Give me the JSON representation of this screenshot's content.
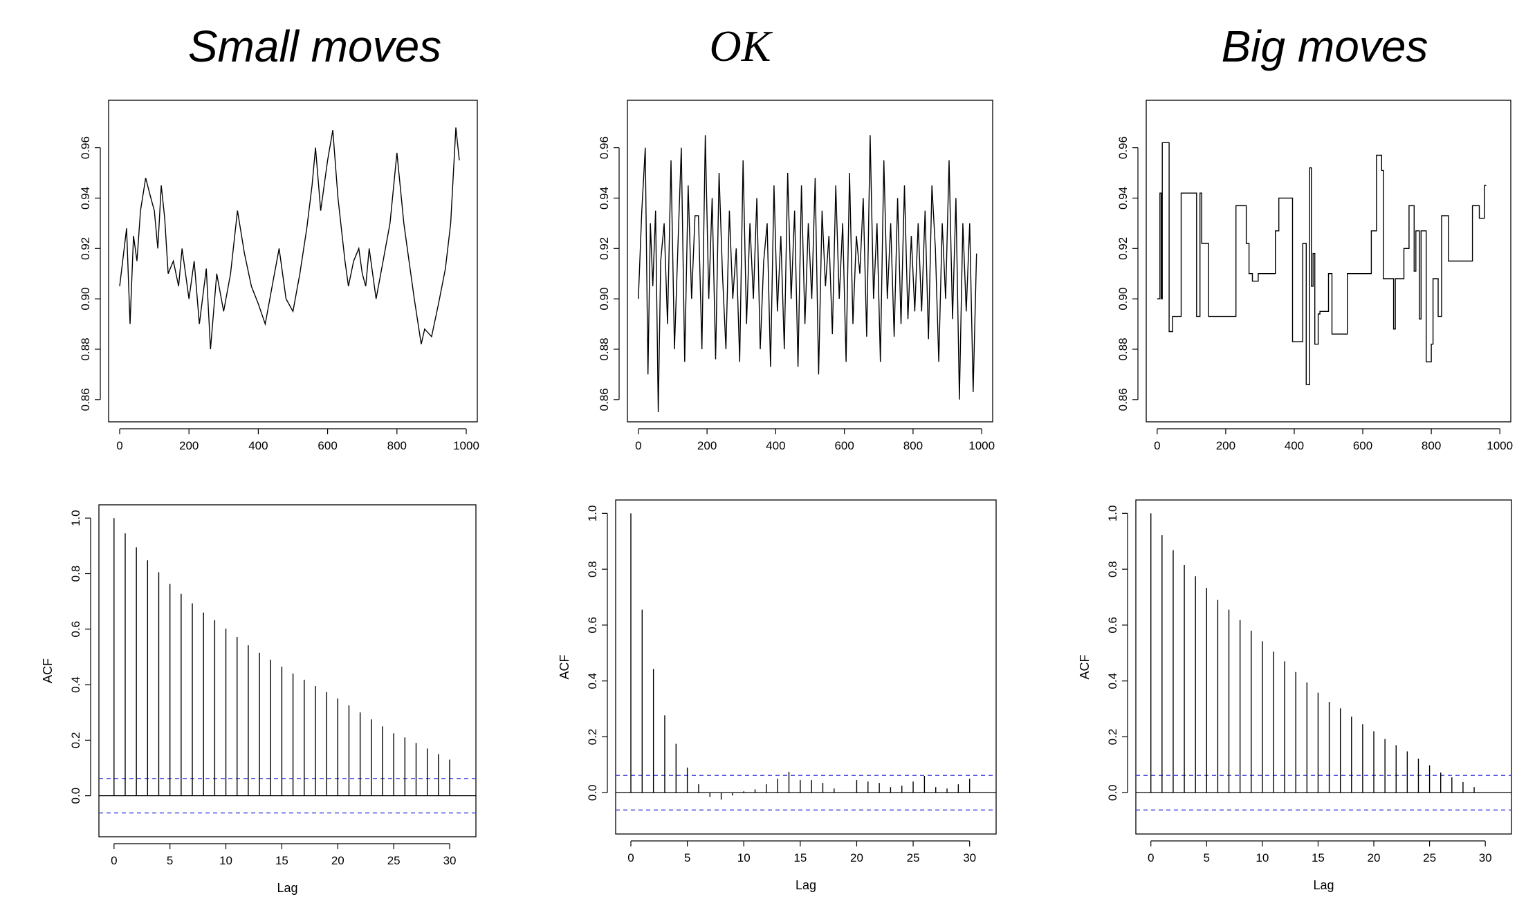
{
  "titles": [
    "Small moves",
    "OK",
    "Big moves"
  ],
  "chart_data": [
    {
      "type": "line",
      "panel": "trace",
      "title": "Small moves",
      "xlabel": "",
      "ylabel": "",
      "xlim": [
        0,
        1000
      ],
      "ylim": [
        0.855,
        0.975
      ],
      "xticks": [
        0,
        200,
        400,
        600,
        800,
        1000
      ],
      "yticks": [
        0.86,
        0.88,
        0.9,
        0.92,
        0.94,
        0.96
      ],
      "yticklabels": [
        "0.86",
        "0.88",
        "0.90",
        "0.92",
        "0.94",
        "0.96"
      ],
      "x": [
        0,
        20,
        30,
        40,
        50,
        60,
        75,
        90,
        100,
        110,
        120,
        130,
        140,
        155,
        170,
        180,
        200,
        215,
        230,
        250,
        262,
        280,
        300,
        320,
        340,
        360,
        380,
        400,
        420,
        440,
        460,
        480,
        500,
        520,
        540,
        555,
        565,
        580,
        600,
        615,
        630,
        650,
        660,
        675,
        690,
        700,
        710,
        720,
        730,
        740,
        760,
        780,
        800,
        820,
        835,
        850,
        870,
        880,
        900,
        920,
        940,
        955,
        970,
        980
      ],
      "y": [
        0.905,
        0.928,
        0.89,
        0.925,
        0.915,
        0.935,
        0.948,
        0.94,
        0.935,
        0.92,
        0.945,
        0.932,
        0.91,
        0.915,
        0.905,
        0.92,
        0.9,
        0.915,
        0.89,
        0.912,
        0.88,
        0.91,
        0.895,
        0.91,
        0.935,
        0.918,
        0.905,
        0.898,
        0.89,
        0.905,
        0.92,
        0.9,
        0.895,
        0.91,
        0.928,
        0.945,
        0.96,
        0.935,
        0.955,
        0.967,
        0.94,
        0.915,
        0.905,
        0.915,
        0.92,
        0.91,
        0.905,
        0.92,
        0.91,
        0.9,
        0.915,
        0.93,
        0.958,
        0.93,
        0.915,
        0.9,
        0.882,
        0.888,
        0.885,
        0.898,
        0.912,
        0.93,
        0.968,
        0.955
      ]
    },
    {
      "type": "line",
      "panel": "trace",
      "title": "OK",
      "xlabel": "",
      "ylabel": "",
      "xlim": [
        0,
        1000
      ],
      "ylim": [
        0.855,
        0.975
      ],
      "xticks": [
        0,
        200,
        400,
        600,
        800,
        1000
      ],
      "yticks": [
        0.86,
        0.88,
        0.9,
        0.92,
        0.94,
        0.96
      ],
      "yticklabels": [
        "0.86",
        "0.88",
        "0.90",
        "0.92",
        "0.94",
        "0.96"
      ],
      "x": [
        0,
        10,
        20,
        28,
        35,
        42,
        50,
        58,
        65,
        75,
        85,
        95,
        105,
        115,
        125,
        135,
        145,
        155,
        165,
        175,
        185,
        195,
        205,
        215,
        225,
        235,
        245,
        255,
        265,
        275,
        285,
        295,
        305,
        315,
        325,
        335,
        345,
        355,
        365,
        375,
        385,
        395,
        405,
        415,
        425,
        435,
        445,
        455,
        465,
        475,
        485,
        495,
        505,
        515,
        525,
        535,
        545,
        555,
        565,
        575,
        585,
        595,
        605,
        615,
        625,
        635,
        645,
        655,
        665,
        675,
        685,
        695,
        705,
        715,
        725,
        735,
        745,
        755,
        765,
        775,
        785,
        795,
        805,
        815,
        825,
        835,
        845,
        855,
        865,
        875,
        885,
        895,
        905,
        915,
        925,
        935,
        945,
        955,
        965,
        975,
        985
      ],
      "y": [
        0.9,
        0.935,
        0.96,
        0.87,
        0.93,
        0.905,
        0.935,
        0.855,
        0.915,
        0.93,
        0.89,
        0.955,
        0.88,
        0.92,
        0.96,
        0.875,
        0.945,
        0.9,
        0.933,
        0.933,
        0.88,
        0.965,
        0.9,
        0.94,
        0.876,
        0.95,
        0.91,
        0.88,
        0.935,
        0.9,
        0.92,
        0.875,
        0.955,
        0.89,
        0.93,
        0.9,
        0.94,
        0.88,
        0.915,
        0.93,
        0.873,
        0.945,
        0.895,
        0.925,
        0.88,
        0.95,
        0.9,
        0.935,
        0.873,
        0.945,
        0.89,
        0.93,
        0.9,
        0.948,
        0.87,
        0.935,
        0.905,
        0.925,
        0.886,
        0.945,
        0.9,
        0.93,
        0.875,
        0.95,
        0.89,
        0.925,
        0.91,
        0.94,
        0.885,
        0.965,
        0.9,
        0.93,
        0.875,
        0.955,
        0.9,
        0.93,
        0.885,
        0.94,
        0.89,
        0.945,
        0.892,
        0.925,
        0.895,
        0.93,
        0.895,
        0.935,
        0.884,
        0.945,
        0.92,
        0.875,
        0.93,
        0.9,
        0.955,
        0.892,
        0.94,
        0.86,
        0.93,
        0.895,
        0.93,
        0.863,
        0.918
      ]
    },
    {
      "type": "line",
      "panel": "trace",
      "title": "Big moves",
      "xlabel": "",
      "ylabel": "",
      "xlim": [
        0,
        1000
      ],
      "ylim": [
        0.855,
        0.975
      ],
      "xticks": [
        0,
        200,
        400,
        600,
        800,
        1000
      ],
      "yticks": [
        0.86,
        0.88,
        0.9,
        0.92,
        0.94,
        0.96
      ],
      "yticklabels": [
        "0.86",
        "0.88",
        "0.90",
        "0.92",
        "0.94",
        "0.96"
      ],
      "steps": [
        [
          0,
          0.9
        ],
        [
          8,
          0.942
        ],
        [
          12,
          0.9
        ],
        [
          15,
          0.962
        ],
        [
          35,
          0.887
        ],
        [
          45,
          0.893
        ],
        [
          70,
          0.942
        ],
        [
          115,
          0.893
        ],
        [
          125,
          0.942
        ],
        [
          130,
          0.922
        ],
        [
          150,
          0.893
        ],
        [
          230,
          0.937
        ],
        [
          260,
          0.922
        ],
        [
          268,
          0.91
        ],
        [
          278,
          0.907
        ],
        [
          295,
          0.91
        ],
        [
          345,
          0.927
        ],
        [
          355,
          0.94
        ],
        [
          395,
          0.883
        ],
        [
          425,
          0.922
        ],
        [
          435,
          0.866
        ],
        [
          445,
          0.952
        ],
        [
          450,
          0.905
        ],
        [
          455,
          0.918
        ],
        [
          460,
          0.882
        ],
        [
          470,
          0.894
        ],
        [
          475,
          0.895
        ],
        [
          500,
          0.91
        ],
        [
          510,
          0.886
        ],
        [
          555,
          0.91
        ],
        [
          625,
          0.927
        ],
        [
          640,
          0.957
        ],
        [
          655,
          0.951
        ],
        [
          660,
          0.908
        ],
        [
          690,
          0.888
        ],
        [
          695,
          0.908
        ],
        [
          720,
          0.92
        ],
        [
          735,
          0.937
        ],
        [
          750,
          0.911
        ],
        [
          755,
          0.927
        ],
        [
          765,
          0.892
        ],
        [
          770,
          0.927
        ],
        [
          785,
          0.875
        ],
        [
          800,
          0.882
        ],
        [
          805,
          0.908
        ],
        [
          820,
          0.893
        ],
        [
          830,
          0.933
        ],
        [
          850,
          0.915
        ],
        [
          920,
          0.937
        ],
        [
          940,
          0.932
        ],
        [
          955,
          0.945
        ],
        [
          960,
          0.945
        ]
      ]
    },
    {
      "type": "bar",
      "panel": "acf",
      "title": "Small moves",
      "xlabel": "Lag",
      "ylabel": "ACF",
      "xlim": [
        0,
        31
      ],
      "ylim": [
        -0.1,
        1.0
      ],
      "xticks": [
        0,
        5,
        10,
        15,
        20,
        25,
        30
      ],
      "yticks": [
        0.0,
        0.2,
        0.4,
        0.6,
        0.8,
        1.0
      ],
      "yticklabels": [
        "0.0",
        "0.2",
        "0.4",
        "0.6",
        "0.8",
        "1.0"
      ],
      "confidence": 0.062,
      "lags": [
        0,
        1,
        2,
        3,
        4,
        5,
        6,
        7,
        8,
        9,
        10,
        11,
        12,
        13,
        14,
        15,
        16,
        17,
        18,
        19,
        20,
        21,
        22,
        23,
        24,
        25,
        26,
        27,
        28,
        29,
        30
      ],
      "values": [
        1.0,
        0.945,
        0.895,
        0.848,
        0.805,
        0.763,
        0.727,
        0.693,
        0.66,
        0.632,
        0.602,
        0.572,
        0.542,
        0.515,
        0.49,
        0.465,
        0.44,
        0.418,
        0.395,
        0.373,
        0.35,
        0.325,
        0.3,
        0.275,
        0.25,
        0.225,
        0.21,
        0.19,
        0.17,
        0.15,
        0.13
      ]
    },
    {
      "type": "bar",
      "panel": "acf",
      "title": "OK",
      "xlabel": "Lag",
      "ylabel": "ACF",
      "xlim": [
        0,
        31
      ],
      "ylim": [
        -0.1,
        1.0
      ],
      "xticks": [
        0,
        5,
        10,
        15,
        20,
        25,
        30
      ],
      "yticks": [
        0.0,
        0.2,
        0.4,
        0.6,
        0.8,
        1.0
      ],
      "yticklabels": [
        "0.0",
        "0.2",
        "0.4",
        "0.6",
        "0.8",
        "1.0"
      ],
      "confidence": 0.062,
      "lags": [
        0,
        1,
        2,
        3,
        4,
        5,
        6,
        7,
        8,
        9,
        10,
        11,
        12,
        13,
        14,
        15,
        16,
        17,
        18,
        19,
        20,
        21,
        22,
        23,
        24,
        25,
        26,
        27,
        28,
        29,
        30
      ],
      "values": [
        1.0,
        0.655,
        0.443,
        0.277,
        0.175,
        0.09,
        0.03,
        -0.015,
        -0.025,
        -0.01,
        0.005,
        0.012,
        0.03,
        0.05,
        0.075,
        0.045,
        0.045,
        0.035,
        0.015,
        0.0,
        0.045,
        0.04,
        0.035,
        0.02,
        0.025,
        0.04,
        0.06,
        0.02,
        0.015,
        0.03,
        0.05
      ]
    },
    {
      "type": "bar",
      "panel": "acf",
      "title": "Big moves",
      "xlabel": "Lag",
      "ylabel": "ACF",
      "xlim": [
        0,
        31
      ],
      "ylim": [
        -0.1,
        1.0
      ],
      "xticks": [
        0,
        5,
        10,
        15,
        20,
        25,
        30
      ],
      "yticks": [
        0.0,
        0.2,
        0.4,
        0.6,
        0.8,
        1.0
      ],
      "yticklabels": [
        "0.0",
        "0.2",
        "0.4",
        "0.6",
        "0.8",
        "1.0"
      ],
      "confidence": 0.062,
      "lags": [
        0,
        1,
        2,
        3,
        4,
        5,
        6,
        7,
        8,
        9,
        10,
        11,
        12,
        13,
        14,
        15,
        16,
        17,
        18,
        19,
        20,
        21,
        22,
        23,
        24,
        25,
        26,
        27,
        28,
        29
      ],
      "values": [
        1.0,
        0.922,
        0.868,
        0.815,
        0.775,
        0.733,
        0.69,
        0.655,
        0.618,
        0.58,
        0.542,
        0.505,
        0.47,
        0.432,
        0.395,
        0.358,
        0.325,
        0.302,
        0.272,
        0.245,
        0.22,
        0.192,
        0.17,
        0.148,
        0.122,
        0.098,
        0.072,
        0.055,
        0.038,
        0.02
      ]
    }
  ],
  "colors": {
    "line": "#000000",
    "confidence": "#3a3adc",
    "background": "#ffffff"
  }
}
